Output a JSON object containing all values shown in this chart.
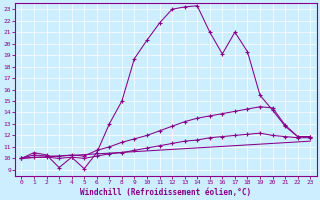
{
  "xlabel": "Windchill (Refroidissement éolien,°C)",
  "bg_color": "#cceeff",
  "line_color": "#880088",
  "grid_color": "#aadddd",
  "xlim": [
    -0.5,
    23.5
  ],
  "ylim": [
    8.5,
    23.5
  ],
  "xticks": [
    0,
    1,
    2,
    3,
    4,
    5,
    6,
    7,
    8,
    9,
    10,
    11,
    12,
    13,
    14,
    15,
    16,
    17,
    18,
    19,
    20,
    21,
    22,
    23
  ],
  "yticks": [
    9,
    10,
    11,
    12,
    13,
    14,
    15,
    16,
    17,
    18,
    19,
    20,
    21,
    22,
    23
  ],
  "line1_x": [
    0,
    1,
    2,
    3,
    4,
    5,
    6,
    7,
    8,
    9,
    10,
    11,
    12,
    13,
    14,
    15,
    16,
    17,
    18,
    19,
    20,
    21,
    22,
    23
  ],
  "line1_y": [
    10.0,
    10.5,
    10.3,
    9.2,
    10.1,
    9.1,
    10.5,
    13.0,
    15.0,
    18.7,
    20.3,
    21.8,
    23.0,
    23.2,
    23.3,
    21.0,
    19.1,
    21.0,
    19.3,
    15.5,
    14.2,
    12.8,
    11.9,
    11.9
  ],
  "line2_x": [
    0,
    1,
    2,
    3,
    4,
    5,
    6,
    7,
    8,
    9,
    10,
    11,
    12,
    13,
    14,
    15,
    16,
    17,
    18,
    19,
    20,
    21,
    22,
    23
  ],
  "line2_y": [
    10.0,
    10.3,
    10.2,
    10.2,
    10.3,
    10.2,
    10.7,
    11.0,
    11.4,
    11.7,
    12.0,
    12.4,
    12.8,
    13.2,
    13.5,
    13.7,
    13.9,
    14.1,
    14.3,
    14.5,
    14.4,
    12.9,
    11.9,
    11.9
  ],
  "line3_x": [
    0,
    1,
    2,
    3,
    4,
    5,
    6,
    7,
    8,
    9,
    10,
    11,
    12,
    13,
    14,
    15,
    16,
    17,
    18,
    19,
    20,
    21,
    22,
    23
  ],
  "line3_y": [
    10.0,
    10.1,
    10.1,
    10.0,
    10.1,
    10.0,
    10.2,
    10.4,
    10.5,
    10.7,
    10.9,
    11.1,
    11.3,
    11.5,
    11.6,
    11.8,
    11.9,
    12.0,
    12.1,
    12.2,
    12.0,
    11.9,
    11.8,
    11.8
  ],
  "line4_x": [
    0,
    23
  ],
  "line4_y": [
    10.0,
    11.5
  ]
}
